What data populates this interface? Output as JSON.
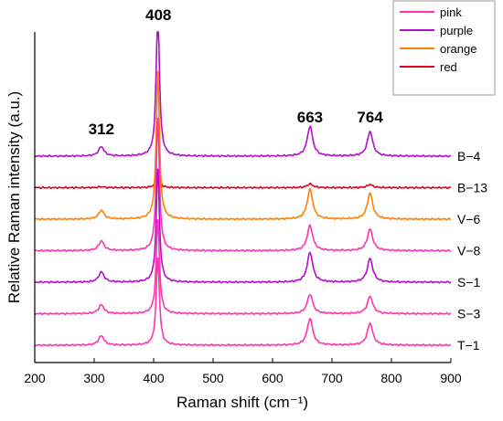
{
  "chart_data": {
    "type": "line",
    "title": "",
    "xlabel": "Raman shift (cm⁻¹)",
    "ylabel": "Relative Raman intensity (a.u.)",
    "xlim": [
      200,
      900
    ],
    "xticks": [
      200,
      300,
      400,
      500,
      600,
      700,
      800,
      900
    ],
    "yticks": false,
    "legend_position": "top-right",
    "legend": [
      {
        "name": "pink",
        "color": "#ff33b1"
      },
      {
        "name": "purple",
        "color": "#b30ecc"
      },
      {
        "name": "orange",
        "color": "#ff8000"
      },
      {
        "name": "red",
        "color": "#e0001a"
      }
    ],
    "peak_labels": [
      {
        "x": 312,
        "text": "312"
      },
      {
        "x": 408,
        "text": "408"
      },
      {
        "x": 663,
        "text": "663"
      },
      {
        "x": 764,
        "text": "764"
      }
    ],
    "series": [
      {
        "name": "B−4",
        "legend": "purple",
        "color": "#b30ecc",
        "offset": 6.0,
        "peaks": [
          {
            "x": 312,
            "h": 0.3
          },
          {
            "x": 407,
            "h": 4.8
          },
          {
            "x": 663,
            "h": 0.95
          },
          {
            "x": 764,
            "h": 0.78
          }
        ]
      },
      {
        "name": "B−13",
        "legend": "red",
        "color": "#e0001a",
        "offset": 5.0,
        "peaks": [
          {
            "x": 312,
            "h": 0.03
          },
          {
            "x": 407,
            "h": 0.55
          },
          {
            "x": 663,
            "h": 0.12
          },
          {
            "x": 764,
            "h": 0.1
          }
        ]
      },
      {
        "name": "V−6",
        "legend": "orange",
        "color": "#ff8000",
        "offset": 4.0,
        "peaks": [
          {
            "x": 312,
            "h": 0.28
          },
          {
            "x": 407,
            "h": 4.7
          },
          {
            "x": 663,
            "h": 0.95
          },
          {
            "x": 764,
            "h": 0.82
          }
        ]
      },
      {
        "name": "V−8",
        "legend": "pink",
        "color": "#ff33b1",
        "offset": 3.0,
        "peaks": [
          {
            "x": 312,
            "h": 0.3
          },
          {
            "x": 407,
            "h": 4.2
          },
          {
            "x": 663,
            "h": 0.8
          },
          {
            "x": 764,
            "h": 0.68
          }
        ]
      },
      {
        "name": "S−1",
        "legend": "purple",
        "color": "#b30ecc",
        "offset": 2.0,
        "peaks": [
          {
            "x": 312,
            "h": 0.32
          },
          {
            "x": 407,
            "h": 3.6
          },
          {
            "x": 663,
            "h": 0.95
          },
          {
            "x": 764,
            "h": 0.75
          }
        ]
      },
      {
        "name": "S−3",
        "legend": "pink",
        "color": "#ff33b1",
        "offset": 1.0,
        "peaks": [
          {
            "x": 312,
            "h": 0.28
          },
          {
            "x": 407,
            "h": 3.0
          },
          {
            "x": 663,
            "h": 0.62
          },
          {
            "x": 764,
            "h": 0.55
          }
        ]
      },
      {
        "name": "T−1",
        "legend": "pink",
        "color": "#ff33b1",
        "offset": 0.0,
        "peaks": [
          {
            "x": 312,
            "h": 0.3
          },
          {
            "x": 407,
            "h": 2.8
          },
          {
            "x": 663,
            "h": 0.85
          },
          {
            "x": 764,
            "h": 0.7
          }
        ]
      }
    ]
  }
}
